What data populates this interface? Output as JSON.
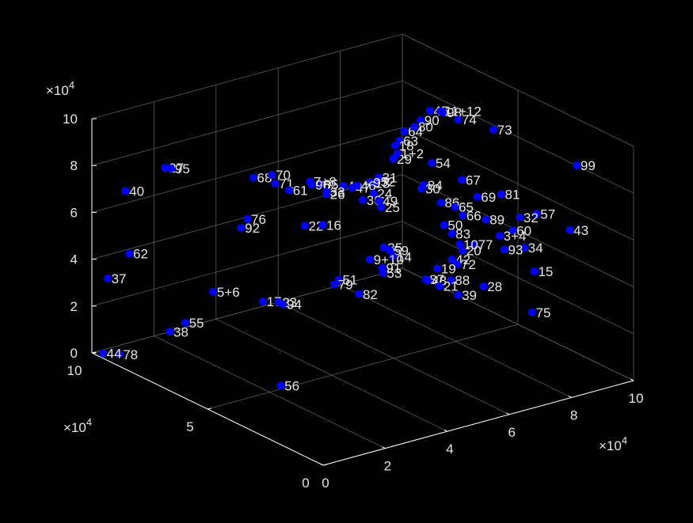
{
  "chart_data": {
    "type": "scatter3d",
    "title": "",
    "xlabel": "",
    "ylabel": "",
    "zlabel": "",
    "xlim": [
      0,
      100000
    ],
    "ylim": [
      0,
      100000
    ],
    "zlim": [
      0,
      100000
    ],
    "grid": true,
    "background": "#000000",
    "axis_color": "#ffffff",
    "grid_color": "#5a5a5a",
    "text_color": "#e6e6e6",
    "marker_color": "#0000ff",
    "x_ticks": [
      0,
      20000,
      40000,
      60000,
      80000,
      100000
    ],
    "x_tick_labels": [
      "0",
      "2",
      "4",
      "6",
      "8",
      "10"
    ],
    "y_ticks": [
      0,
      50000,
      100000
    ],
    "y_tick_labels": [
      "0",
      "5",
      "10"
    ],
    "z_ticks": [
      0,
      20000,
      40000,
      60000,
      80000,
      100000
    ],
    "z_tick_labels": [
      "0",
      "2",
      "4",
      "6",
      "8",
      "10"
    ],
    "x_multiplier": "×10",
    "y_multiplier": "×10",
    "z_multiplier": "×10",
    "multiplier_exponent": "4",
    "points": [
      {
        "x": 53000,
        "y": 41000,
        "z": 92000,
        "label": "29"
      },
      {
        "x": 82000,
        "y": 64000,
        "z": 91000,
        "label": "45"
      },
      {
        "x": 84000,
        "y": 61000,
        "z": 91000,
        "label": "98"
      },
      {
        "x": 79000,
        "y": 64000,
        "z": 88000,
        "label": "90"
      },
      {
        "x": 35000,
        "y": 22000,
        "z": 87000,
        "label": "25"
      },
      {
        "x": 47000,
        "y": 40000,
        "z": 85000,
        "label": "52"
      },
      {
        "x": 64000,
        "y": 53000,
        "z": 90000,
        "label": "63"
      },
      {
        "x": 70000,
        "y": 59000,
        "z": 89000,
        "label": "64"
      },
      {
        "x": 77000,
        "y": 64000,
        "z": 86000,
        "label": "80"
      },
      {
        "x": 87000,
        "y": 66000,
        "z": 88000,
        "label": "11+12"
      },
      {
        "x": 92000,
        "y": 50000,
        "z": 86000,
        "label": "73"
      },
      {
        "x": 91000,
        "y": 64000,
        "z": 84000,
        "label": "74"
      },
      {
        "x": 98000,
        "y": 22000,
        "z": 82000,
        "label": "99"
      },
      {
        "x": 67000,
        "y": 58000,
        "z": 81000,
        "label": "1+2"
      },
      {
        "x": 55000,
        "y": 50000,
        "z": 79000,
        "label": "31"
      },
      {
        "x": 79000,
        "y": 75000,
        "z": 72000,
        "label": "18"
      },
      {
        "x": 48000,
        "y": 66000,
        "z": 71000,
        "label": "85"
      },
      {
        "x": 40000,
        "y": 84000,
        "z": 68000,
        "label": "68"
      },
      {
        "x": 96000,
        "y": 82000,
        "z": 55000,
        "label": "54"
      },
      {
        "x": 96000,
        "y": 69000,
        "z": 54000,
        "label": "67"
      },
      {
        "x": 99000,
        "y": 56000,
        "z": 53000,
        "label": "81"
      },
      {
        "x": 97000,
        "y": 38000,
        "z": 54000,
        "label": "57"
      },
      {
        "x": 98000,
        "y": 25000,
        "z": 53000,
        "label": "43"
      },
      {
        "x": 22000,
        "y": 98000,
        "z": 72000,
        "label": "27"
      },
      {
        "x": 24000,
        "y": 98000,
        "z": 71000,
        "label": "95"
      },
      {
        "x": 46000,
        "y": 84000,
        "z": 67000,
        "label": "70"
      },
      {
        "x": 10000,
        "y": 99000,
        "z": 66000,
        "label": "40"
      },
      {
        "x": 50000,
        "y": 88000,
        "z": 60000,
        "label": "71"
      },
      {
        "x": 56000,
        "y": 81000,
        "z": 62000,
        "label": "7+8"
      },
      {
        "x": 58000,
        "y": 83000,
        "z": 59000,
        "label": "96"
      },
      {
        "x": 70000,
        "y": 74000,
        "z": 60000,
        "label": "97"
      },
      {
        "x": 72000,
        "y": 76000,
        "z": 58000,
        "label": "13"
      },
      {
        "x": 66000,
        "y": 80000,
        "z": 57000,
        "label": "4"
      },
      {
        "x": 68000,
        "y": 79000,
        "z": 56000,
        "label": "47"
      },
      {
        "x": 72000,
        "y": 82000,
        "z": 54000,
        "label": "46"
      },
      {
        "x": 86000,
        "y": 72000,
        "z": 54000,
        "label": "84"
      },
      {
        "x": 86000,
        "y": 73000,
        "z": 52000,
        "label": "30"
      },
      {
        "x": 87000,
        "y": 66000,
        "z": 49000,
        "label": "86"
      },
      {
        "x": 95000,
        "y": 61000,
        "z": 51000,
        "label": "69"
      },
      {
        "x": 56000,
        "y": 90000,
        "z": 54000,
        "label": "61"
      },
      {
        "x": 65000,
        "y": 86000,
        "z": 52000,
        "label": "33"
      },
      {
        "x": 65000,
        "y": 86000,
        "z": 51000,
        "label": "26"
      },
      {
        "x": 78000,
        "y": 83000,
        "z": 48000,
        "label": "24"
      },
      {
        "x": 76000,
        "y": 85000,
        "z": 45000,
        "label": "36"
      },
      {
        "x": 79000,
        "y": 82000,
        "z": 45000,
        "label": "49"
      },
      {
        "x": 96000,
        "y": 72000,
        "z": 41000,
        "label": "65"
      },
      {
        "x": 97000,
        "y": 70000,
        "z": 38000,
        "label": "66"
      },
      {
        "x": 100000,
        "y": 64000,
        "z": 38000,
        "label": "89"
      },
      {
        "x": 99000,
        "y": 48000,
        "z": 47000,
        "label": "32"
      },
      {
        "x": 99000,
        "y": 51000,
        "z": 40000,
        "label": "60"
      },
      {
        "x": 99000,
        "y": 46000,
        "z": 35000,
        "label": "34"
      },
      {
        "x": 100000,
        "y": 58000,
        "z": 34000,
        "label": "3+4"
      },
      {
        "x": 100000,
        "y": 56000,
        "z": 29000,
        "label": "93"
      },
      {
        "x": 100000,
        "y": 43000,
        "z": 26000,
        "label": "15"
      },
      {
        "x": 94000,
        "y": 74000,
        "z": 33000,
        "label": "50"
      },
      {
        "x": 95000,
        "y": 72000,
        "z": 30000,
        "label": "83"
      },
      {
        "x": 97000,
        "y": 65000,
        "z": 28000,
        "label": "77"
      },
      {
        "x": 96000,
        "y": 70000,
        "z": 26000,
        "label": "10"
      },
      {
        "x": 97000,
        "y": 70000,
        "z": 23000,
        "label": "20"
      },
      {
        "x": 95000,
        "y": 72000,
        "z": 19000,
        "label": "42"
      },
      {
        "x": 96000,
        "y": 71000,
        "z": 17000,
        "label": "72"
      },
      {
        "x": 50000,
        "y": 100000,
        "z": 39000,
        "label": "76"
      },
      {
        "x": 48000,
        "y": 100000,
        "z": 36000,
        "label": "92"
      },
      {
        "x": 67000,
        "y": 98000,
        "z": 31000,
        "label": "22"
      },
      {
        "x": 72000,
        "y": 97000,
        "z": 30000,
        "label": "16"
      },
      {
        "x": 85000,
        "y": 88000,
        "z": 20000,
        "label": "35"
      },
      {
        "x": 87000,
        "y": 88000,
        "z": 18000,
        "label": "59"
      },
      {
        "x": 88000,
        "y": 88000,
        "z": 15000,
        "label": "14"
      },
      {
        "x": 82000,
        "y": 90000,
        "z": 15000,
        "label": "9+10"
      },
      {
        "x": 86000,
        "y": 90000,
        "z": 10000,
        "label": "91"
      },
      {
        "x": 97000,
        "y": 75000,
        "z": 8000,
        "label": "88"
      },
      {
        "x": 100000,
        "y": 65000,
        "z": 9000,
        "label": "28"
      },
      {
        "x": 100000,
        "y": 44000,
        "z": 8000,
        "label": "75"
      },
      {
        "x": 12000,
        "y": 100000,
        "z": 38000,
        "label": "62"
      },
      {
        "x": 5000,
        "y": 100000,
        "z": 30000,
        "label": "37"
      },
      {
        "x": 39000,
        "y": 100000,
        "z": 12000,
        "label": "5+6"
      },
      {
        "x": 72000,
        "y": 90000,
        "z": 10000,
        "label": "51"
      },
      {
        "x": 100000,
        "y": 85000,
        "z": 7000,
        "label": "19"
      },
      {
        "x": 90000,
        "y": 95000,
        "z": 4000,
        "label": "53"
      },
      {
        "x": 78000,
        "y": 100000,
        "z": 1000,
        "label": "79"
      },
      {
        "x": 55000,
        "y": 100000,
        "z": 2000,
        "label": "17"
      },
      {
        "x": 30000,
        "y": 100000,
        "z": 2000,
        "label": "55"
      },
      {
        "x": 60000,
        "y": 100000,
        "z": 0,
        "label": "23"
      },
      {
        "x": 25000,
        "y": 100000,
        "z": 0,
        "label": "38"
      },
      {
        "x": 100000,
        "y": 90000,
        "z": 0,
        "label": "87"
      },
      {
        "x": 100000,
        "y": 89000,
        "z": 0,
        "label": "48"
      },
      {
        "x": 100000,
        "y": 76000,
        "z": 0,
        "label": "39"
      },
      {
        "x": 60000,
        "y": 98000,
        "z": 0,
        "label": "94"
      },
      {
        "x": 80000,
        "y": 92000,
        "z": 0,
        "label": "82"
      },
      {
        "x": 100000,
        "y": 84000,
        "z": 0,
        "label": "21"
      },
      {
        "x": 5000,
        "y": 95000,
        "z": 0,
        "label": "78"
      },
      {
        "x": 2000,
        "y": 98000,
        "z": 0,
        "label": "44"
      },
      {
        "x": 25000,
        "y": 52000,
        "z": 0,
        "label": "56"
      }
    ]
  }
}
